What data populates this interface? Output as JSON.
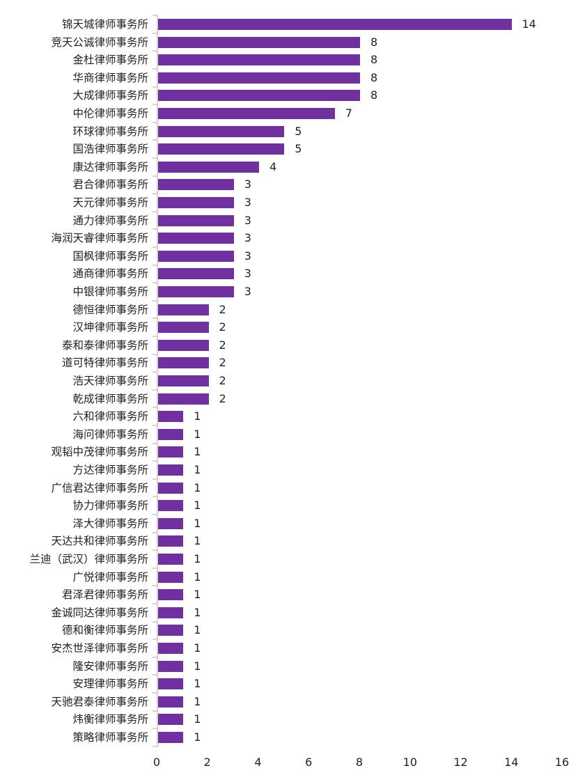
{
  "chart_data": {
    "type": "bar",
    "orientation": "horizontal",
    "title": "",
    "xlabel": "",
    "ylabel": "",
    "xlim": [
      0,
      16
    ],
    "x_ticks": [
      "0",
      "2",
      "4",
      "6",
      "8",
      "10",
      "12",
      "14",
      "16"
    ],
    "grid": false,
    "legend": null,
    "bar_color": "#7030a0",
    "data_labels": true,
    "categories": [
      "锦天城律师事务所",
      "竞天公诚律师事务所",
      "金杜律师事务所",
      "华商律师事务所",
      "大成律师事务所",
      "中伦律师事务所",
      "环球律师事务所",
      "国浩律师事务所",
      "康达律师事务所",
      "君合律师事务所",
      "天元律师事务所",
      "通力律师事务所",
      "海润天睿律师事务所",
      "国枫律师事务所",
      "通商律师事务所",
      "中银律师事务所",
      "德恒律师事务所",
      "汉坤律师事务所",
      "泰和泰律师事务所",
      "道可特律师事务所",
      "浩天律师事务所",
      "乾成律师事务所",
      "六和律师事务所",
      "海问律师事务所",
      "观韬中茂律师事务所",
      "方达律师事务所",
      "广信君达律师事务所",
      "协力律师事务所",
      "泽大律师事务所",
      "天达共和律师事务所",
      "兰迪（武汉）律师事务所",
      "广悦律师事务所",
      "君泽君律师事务所",
      "金诚同达律师事务所",
      "德和衡律师事务所",
      "安杰世泽律师事务所",
      "隆安律师事务所",
      "安理律师事务所",
      "天驰君泰律师事务所",
      "炜衡律师事务所",
      "策略律师事务所"
    ],
    "values": [
      14,
      8,
      8,
      8,
      8,
      7,
      5,
      5,
      4,
      3,
      3,
      3,
      3,
      3,
      3,
      3,
      2,
      2,
      2,
      2,
      2,
      2,
      1,
      1,
      1,
      1,
      1,
      1,
      1,
      1,
      1,
      1,
      1,
      1,
      1,
      1,
      1,
      1,
      1,
      1,
      1
    ]
  }
}
